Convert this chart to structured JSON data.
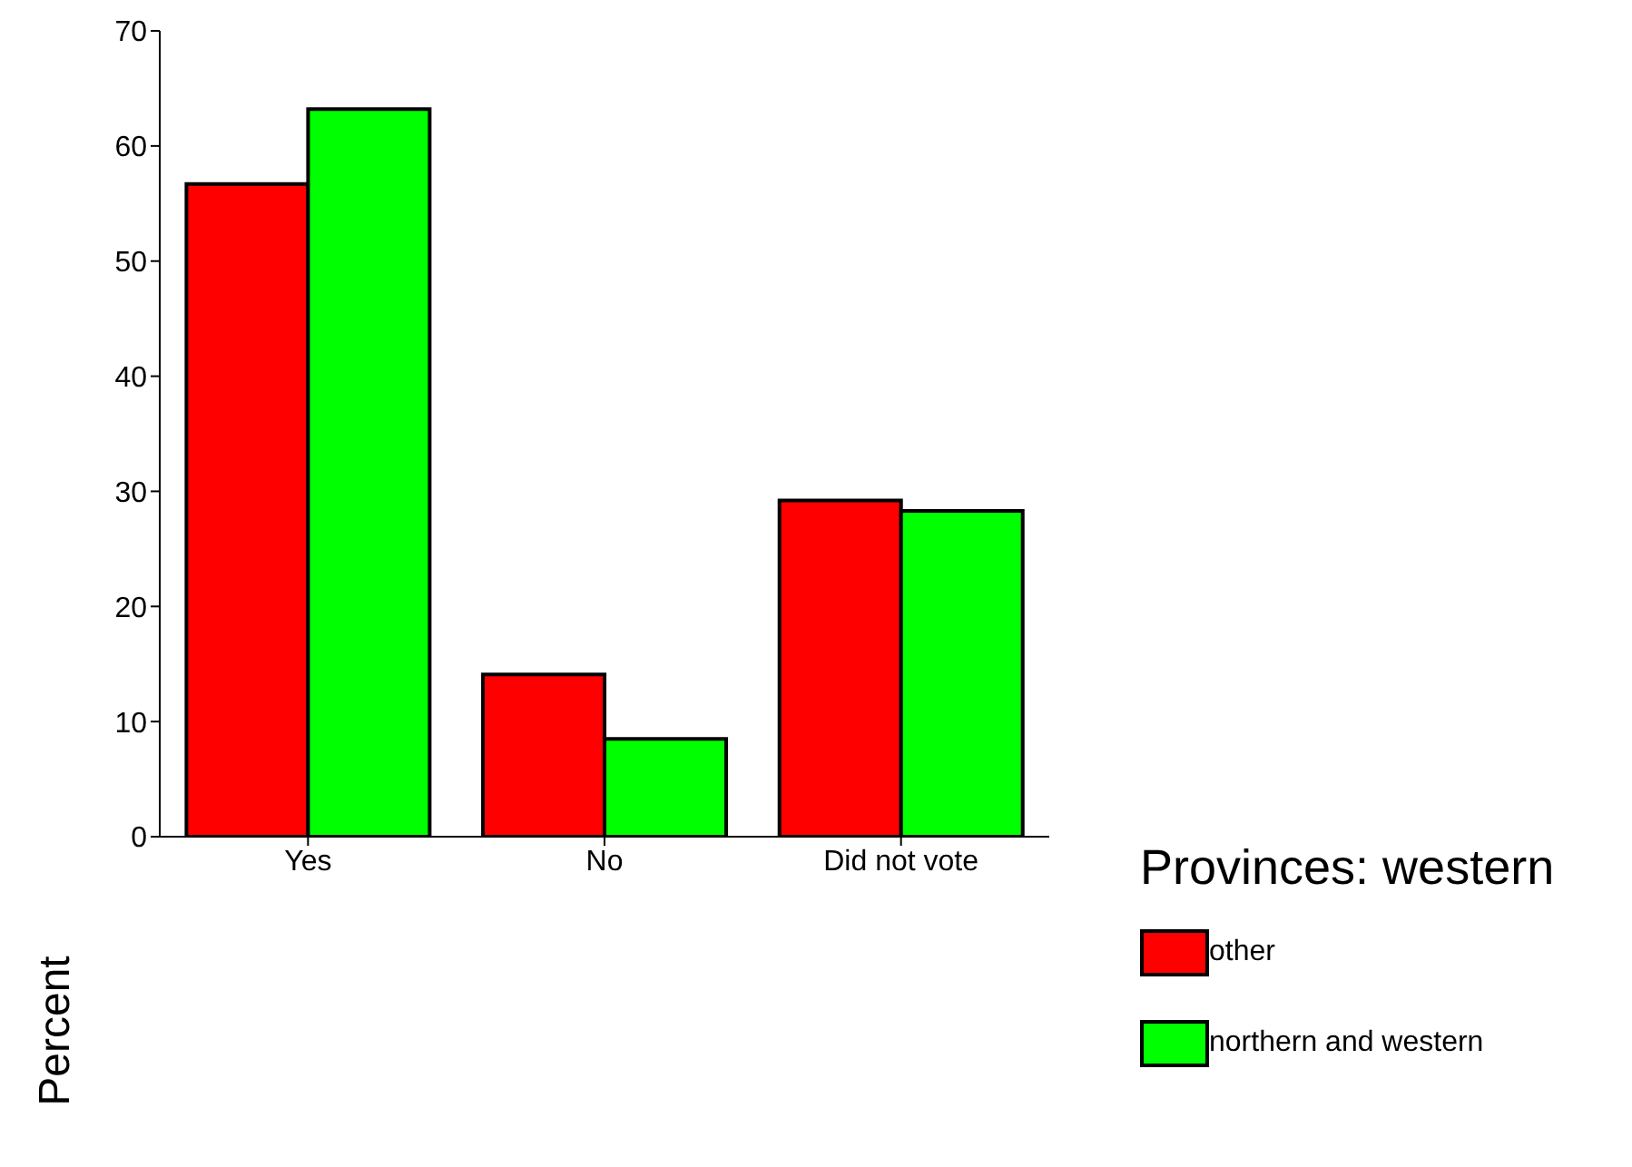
{
  "chart_data": {
    "type": "bar",
    "ylabel": "Percent",
    "legend_title": "Provinces: western",
    "categories": [
      "Yes",
      "No",
      "Did not vote"
    ],
    "series": [
      {
        "name": "other",
        "color": "#ff0000",
        "values": [
          56.7,
          14.1,
          29.2
        ]
      },
      {
        "name": "northern and western",
        "color": "#00ff00",
        "values": [
          63.2,
          8.5,
          28.3
        ]
      }
    ],
    "ylim": [
      0,
      70
    ],
    "yticks": [
      0,
      10,
      20,
      30,
      40,
      50,
      60,
      70
    ],
    "grid": false,
    "legend": "bottom right"
  }
}
